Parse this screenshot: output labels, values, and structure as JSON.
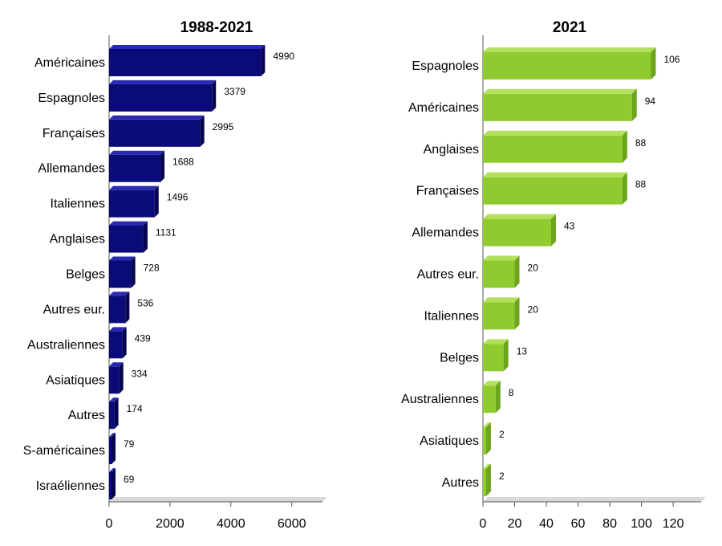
{
  "chart_data": [
    {
      "type": "bar",
      "orientation": "horizontal",
      "title": "1988-2021",
      "xlabel": "",
      "ylabel": "",
      "categories": [
        "Américaines",
        "Espagnoles",
        "Françaises",
        "Allemandes",
        "Italiennes",
        "Anglaises",
        "Belges",
        "Autres eur.",
        "Australiennes",
        "Asiatiques",
        "Autres",
        "S-américaines",
        "Israéliennes"
      ],
      "values": [
        4990,
        3379,
        2995,
        1688,
        1496,
        1131,
        728,
        536,
        439,
        334,
        174,
        79,
        69
      ],
      "xlim": [
        0,
        7300
      ],
      "xticks": [
        0,
        2000,
        4000,
        6000
      ],
      "grid": false,
      "color": "#0a0a78",
      "color_top": "#2a2ab0",
      "color_side": "#050550"
    },
    {
      "type": "bar",
      "orientation": "horizontal",
      "title": "2021",
      "xlabel": "",
      "ylabel": "",
      "categories": [
        "Espagnoles",
        "Américaines",
        "Anglaises",
        "Françaises",
        "Allemandes",
        "Autres eur.",
        "Italiennes",
        "Belges",
        "Australiennes",
        "Asiatiques",
        "Autres"
      ],
      "values": [
        106,
        94,
        88,
        88,
        43,
        20,
        20,
        13,
        8,
        2,
        2
      ],
      "xlim": [
        0,
        140
      ],
      "xticks": [
        0,
        20,
        40,
        60,
        80,
        100,
        120
      ],
      "grid": false,
      "color": "#8fcb2e",
      "color_top": "#b3e05a",
      "color_side": "#6da41c"
    }
  ]
}
